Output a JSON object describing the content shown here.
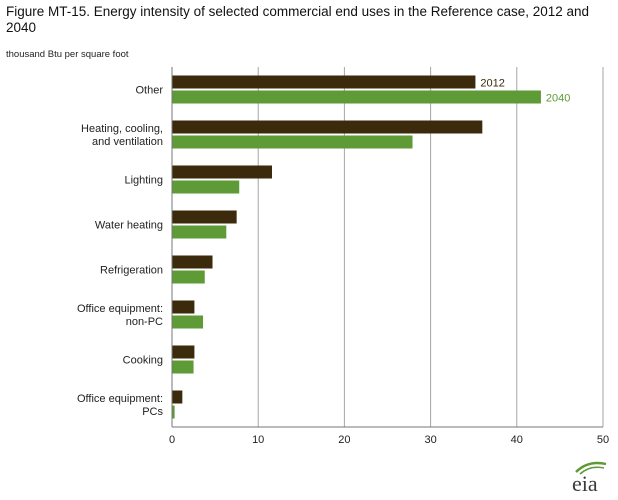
{
  "title": "Figure MT-15. Energy intensity of selected commercial end uses in the Reference case, 2012 and 2040",
  "unit_label": "thousand Btu per square foot",
  "logo_text": "eia",
  "colors": {
    "s2012": "#3c2a0c",
    "s2040": "#5e9a35",
    "grid": "#a6a6a6",
    "axis": "#777777",
    "logo_green": "#5e9a35"
  },
  "chart_data": {
    "type": "bar",
    "orientation": "horizontal",
    "title": "Figure MT-15. Energy intensity of selected commercial end uses in the Reference case, 2012 and 2040",
    "xlabel": "thousand Btu per square foot",
    "categories": [
      [
        "Other"
      ],
      [
        "Heating, cooling,",
        "and ventilation"
      ],
      [
        "Lighting"
      ],
      [
        "Water heating"
      ],
      [
        "Refrigeration"
      ],
      [
        "Office equipment:",
        "non-PC"
      ],
      [
        "Cooking"
      ],
      [
        "Office equipment:",
        "PCs"
      ]
    ],
    "series": [
      {
        "name": "2012",
        "values": [
          35.2,
          36.0,
          11.6,
          7.5,
          4.7,
          2.6,
          2.6,
          1.2
        ]
      },
      {
        "name": "2040",
        "values": [
          42.8,
          27.9,
          7.8,
          6.3,
          3.8,
          3.6,
          2.5,
          0.3
        ]
      }
    ],
    "xlim": [
      0,
      50
    ],
    "xticks": [
      0,
      10,
      20,
      30,
      40,
      50
    ],
    "grid": true,
    "legend": "inline labels on Other bars"
  }
}
